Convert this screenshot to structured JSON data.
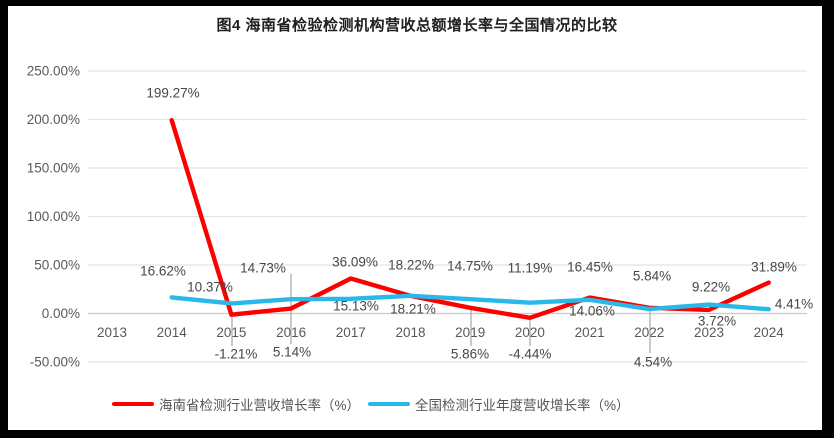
{
  "title": "图4 海南省检验检测机构营收总额增长率与全国情况的比较",
  "chart_data": {
    "type": "line",
    "categories": [
      "2013",
      "2014",
      "2015",
      "2016",
      "2017",
      "2018",
      "2019",
      "2020",
      "2021",
      "2022",
      "2023",
      "2024"
    ],
    "series": [
      {
        "name": "海南省检测行业营收增长率（%）",
        "color": "#ff0000",
        "values": [
          null,
          199.27,
          -1.21,
          5.14,
          36.09,
          18.22,
          5.86,
          -4.44,
          16.45,
          5.84,
          3.72,
          31.89
        ]
      },
      {
        "name": "全国检测行业年度营收增长率（%）",
        "color": "#29b9e8",
        "values": [
          null,
          16.62,
          10.37,
          14.73,
          15.13,
          18.21,
          14.75,
          11.19,
          14.06,
          4.54,
          9.22,
          4.41
        ]
      }
    ],
    "xlabel": "",
    "ylabel": "",
    "ylim": [
      -50,
      250
    ],
    "yticks": [
      250,
      200,
      150,
      100,
      50,
      0,
      -50
    ],
    "ytick_suffix": "%",
    "grid": true,
    "data_labels": true,
    "legend_position": "bottom",
    "colors": {
      "grid": "#e3e3e3",
      "zero_line": "#c9c9c9",
      "leader_line": "#a6a6a6",
      "axis_text": "#595959",
      "label_text": "#474747"
    }
  }
}
